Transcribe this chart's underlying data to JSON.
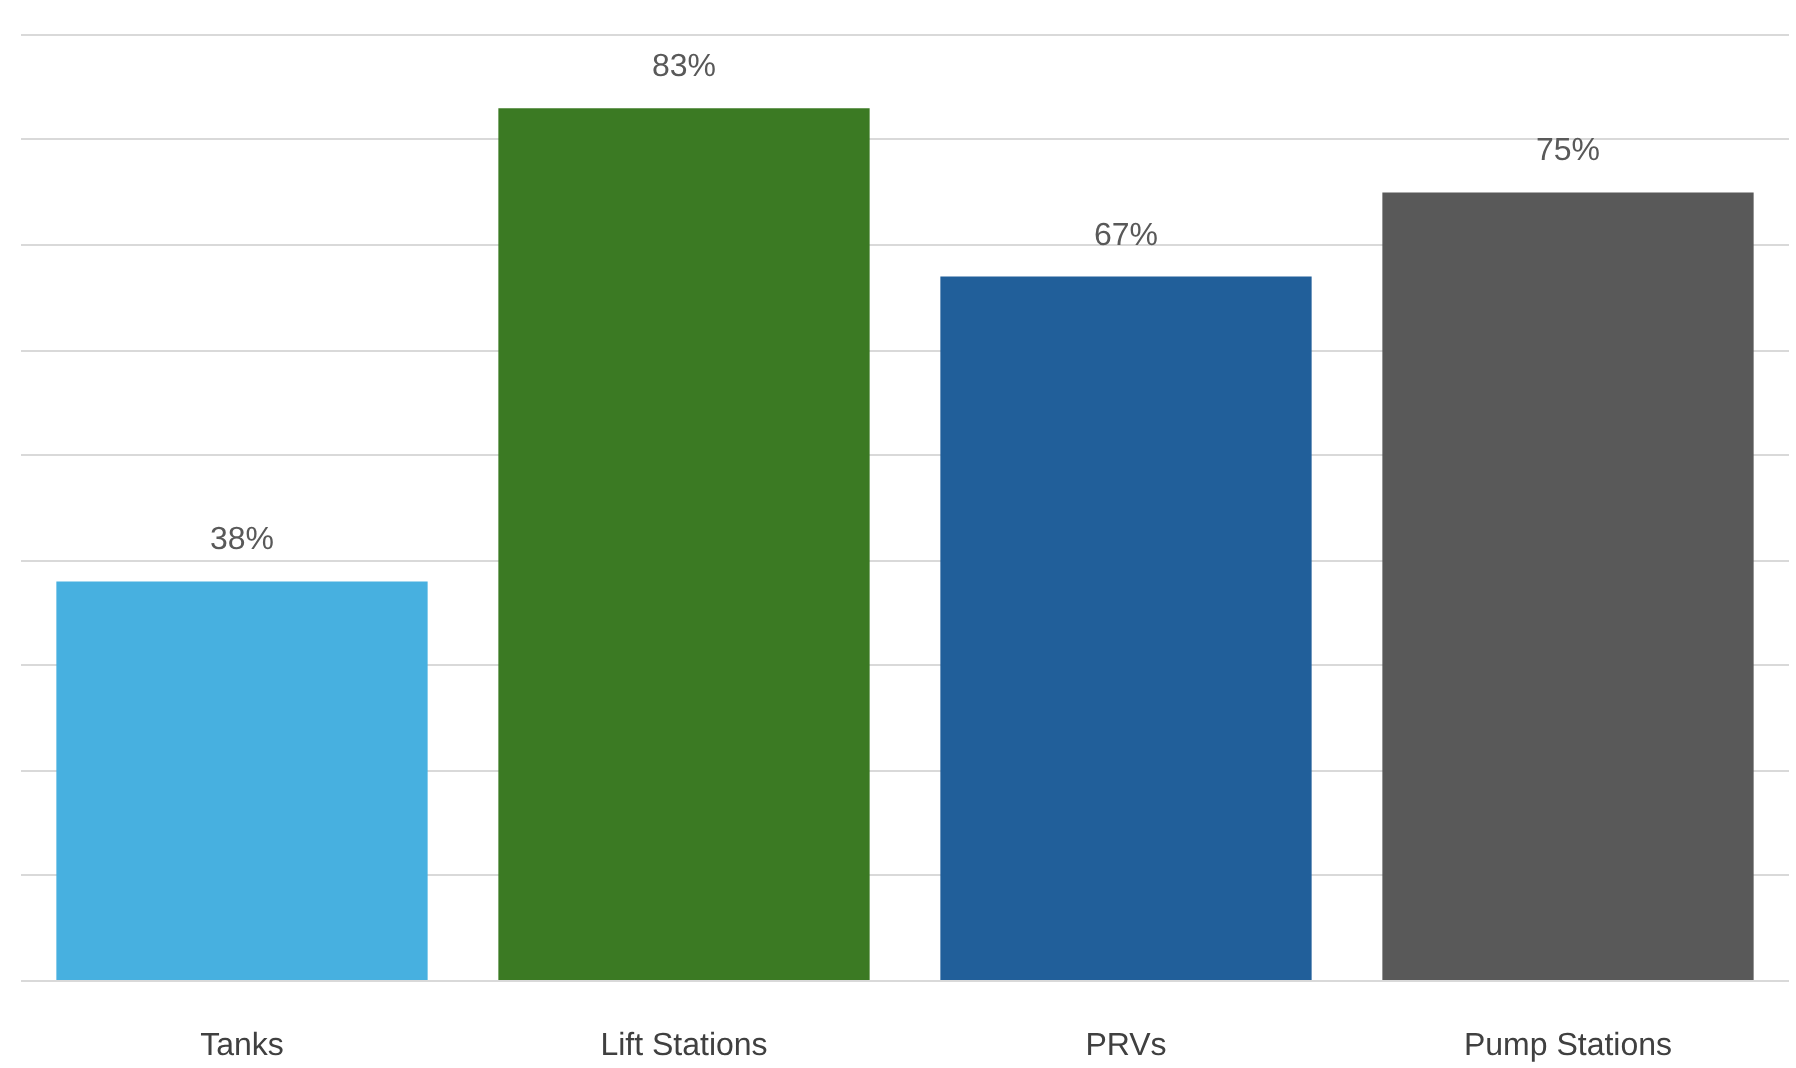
{
  "chart_data": {
    "type": "bar",
    "categories": [
      "Tanks",
      "Lift Stations",
      "PRVs",
      "Pump Stations"
    ],
    "values": [
      38,
      83,
      67,
      75
    ],
    "value_labels": [
      "38%",
      "83%",
      "67%",
      "75%"
    ],
    "colors": [
      "#47b0e0",
      "#3b7a23",
      "#215f9a",
      "#595959"
    ],
    "grid": "y",
    "tick_labels": "x"
  }
}
